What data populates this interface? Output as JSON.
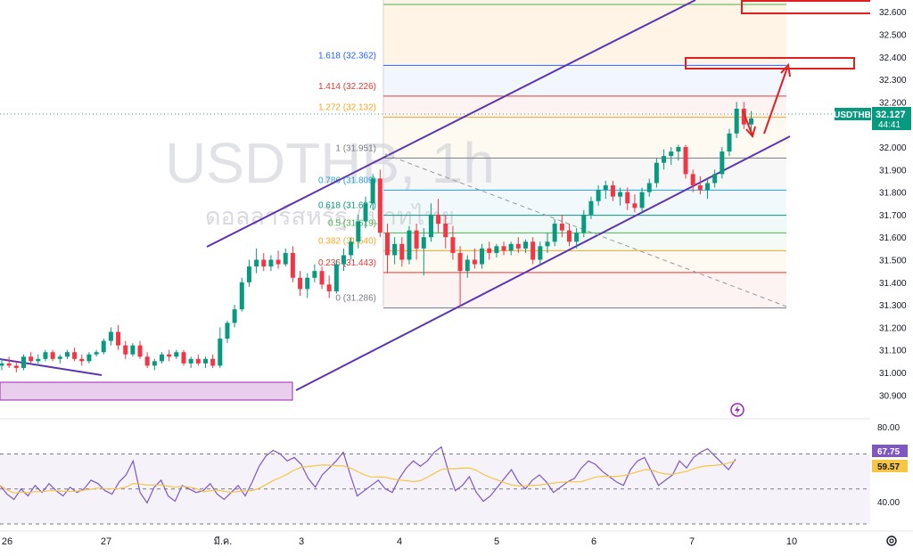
{
  "watermark": {
    "symbol": "USDTHB, 1h",
    "subtitle": "ดอลลาร์สหรัฐ / บาทไทย"
  },
  "price_axis": {
    "ticks": [
      "32.600",
      "32.500",
      "32.400",
      "32.300",
      "32.200",
      "32.100",
      "32.000",
      "31.900",
      "31.800",
      "31.700",
      "31.600",
      "31.500",
      "31.400",
      "31.300",
      "31.200",
      "31.100",
      "31.000",
      "30.900"
    ],
    "ticker_label": "USDTHB",
    "last_price": "32.127",
    "countdown": "44:41"
  },
  "rsi_axis": {
    "ticks": [
      "80.00",
      "40.00"
    ],
    "rsi_value": "67.75",
    "ma_value": "59.57"
  },
  "time_axis": {
    "labels": [
      "26",
      "27",
      "มี.ค.",
      "3",
      "4",
      "5",
      "6",
      "7",
      "10"
    ]
  },
  "fib_levels": [
    {
      "ratio": "1.618",
      "price": "32.362",
      "label": "1.618 (32.362)",
      "color": "#2962ff"
    },
    {
      "ratio": "1.414",
      "price": "32.226",
      "label": "1.414 (32.226)",
      "color": "#e53935"
    },
    {
      "ratio": "1.272",
      "price": "32.132",
      "label": "1.272 (32.132)",
      "color": "#f5a623"
    },
    {
      "ratio": "1",
      "price": "31.951",
      "label": "1 (31.951)",
      "color": "#787b86"
    },
    {
      "ratio": "0.786",
      "price": "31.809",
      "label": "0.786 (31.809)",
      "color": "#26a0da"
    },
    {
      "ratio": "0.618",
      "price": "31.697",
      "label": "0.618 (31.697)",
      "color": "#089981"
    },
    {
      "ratio": "0.5",
      "price": "31.619",
      "label": "0.5 (31.619)",
      "color": "#4caf50"
    },
    {
      "ratio": "0.382",
      "price": "31.540",
      "label": "0.382 (31.540)",
      "color": "#f5a623"
    },
    {
      "ratio": "0.236",
      "price": "31.443",
      "label": "0.236 (31.443)",
      "color": "#e53935"
    },
    {
      "ratio": "0",
      "price": "31.286",
      "label": "0 (31.286)",
      "color": "#787b86"
    }
  ],
  "colors": {
    "up": "#089981",
    "down": "#f23645",
    "channel": "#5e35b1",
    "rsi": "#7e57c2",
    "rsi_ma": "#f5c543",
    "annotation": "#e02020",
    "zone": "#e1bee7"
  },
  "chart_data": {
    "type": "candlestick",
    "symbol": "USDTHB",
    "interval": "1h",
    "ylim": [
      30.85,
      32.63
    ],
    "last": 32.127,
    "ohlc": [
      {
        "t": 0,
        "o": 31.03,
        "h": 31.06,
        "l": 31.01,
        "c": 31.04
      },
      {
        "t": 3,
        "o": 31.04,
        "h": 31.07,
        "l": 31.02,
        "c": 31.03
      },
      {
        "t": 6,
        "o": 31.03,
        "h": 31.05,
        "l": 31.0,
        "c": 31.02
      },
      {
        "t": 9,
        "o": 31.02,
        "h": 31.08,
        "l": 31.01,
        "c": 31.07
      },
      {
        "t": 12,
        "o": 31.07,
        "h": 31.09,
        "l": 31.04,
        "c": 31.05
      },
      {
        "t": 15,
        "o": 31.05,
        "h": 31.08,
        "l": 31.03,
        "c": 31.06
      },
      {
        "t": 18,
        "o": 31.06,
        "h": 31.1,
        "l": 31.05,
        "c": 31.09
      },
      {
        "t": 21,
        "o": 31.09,
        "h": 31.1,
        "l": 31.05,
        "c": 31.06
      },
      {
        "t": 24,
        "o": 31.06,
        "h": 31.08,
        "l": 31.04,
        "c": 31.07
      },
      {
        "t": 27,
        "o": 31.07,
        "h": 31.1,
        "l": 31.06,
        "c": 31.09
      },
      {
        "t": 30,
        "o": 31.09,
        "h": 31.11,
        "l": 31.05,
        "c": 31.06
      },
      {
        "t": 33,
        "o": 31.06,
        "h": 31.08,
        "l": 31.03,
        "c": 31.05
      },
      {
        "t": 36,
        "o": 31.05,
        "h": 31.09,
        "l": 31.04,
        "c": 31.08
      },
      {
        "t": 39,
        "o": 31.08,
        "h": 31.1,
        "l": 31.07,
        "c": 31.09
      },
      {
        "t": 42,
        "o": 31.09,
        "h": 31.15,
        "l": 31.08,
        "c": 31.14
      },
      {
        "t": 45,
        "o": 31.14,
        "h": 31.2,
        "l": 31.12,
        "c": 31.18
      },
      {
        "t": 48,
        "o": 31.18,
        "h": 31.21,
        "l": 31.1,
        "c": 31.12
      },
      {
        "t": 51,
        "o": 31.12,
        "h": 31.14,
        "l": 31.06,
        "c": 31.08
      },
      {
        "t": 54,
        "o": 31.08,
        "h": 31.13,
        "l": 31.07,
        "c": 31.12
      },
      {
        "t": 57,
        "o": 31.12,
        "h": 31.14,
        "l": 31.06,
        "c": 31.07
      },
      {
        "t": 60,
        "o": 31.07,
        "h": 31.09,
        "l": 31.02,
        "c": 31.03
      },
      {
        "t": 63,
        "o": 31.03,
        "h": 31.06,
        "l": 31.01,
        "c": 31.05
      },
      {
        "t": 66,
        "o": 31.05,
        "h": 31.09,
        "l": 31.04,
        "c": 31.08
      },
      {
        "t": 69,
        "o": 31.08,
        "h": 31.1,
        "l": 31.05,
        "c": 31.07
      },
      {
        "t": 72,
        "o": 31.07,
        "h": 31.1,
        "l": 31.06,
        "c": 31.09
      },
      {
        "t": 75,
        "o": 31.09,
        "h": 31.1,
        "l": 31.03,
        "c": 31.04
      },
      {
        "t": 78,
        "o": 31.04,
        "h": 31.07,
        "l": 31.02,
        "c": 31.06
      },
      {
        "t": 81,
        "o": 31.06,
        "h": 31.08,
        "l": 31.03,
        "c": 31.04
      },
      {
        "t": 84,
        "o": 31.04,
        "h": 31.07,
        "l": 31.02,
        "c": 31.06
      },
      {
        "t": 87,
        "o": 31.06,
        "h": 31.08,
        "l": 31.02,
        "c": 31.03
      },
      {
        "t": 90,
        "o": 31.03,
        "h": 31.2,
        "l": 31.02,
        "c": 31.15
      },
      {
        "t": 93,
        "o": 31.15,
        "h": 31.23,
        "l": 31.13,
        "c": 31.22
      },
      {
        "t": 96,
        "o": 31.22,
        "h": 31.3,
        "l": 31.2,
        "c": 31.28
      },
      {
        "t": 99,
        "o": 31.28,
        "h": 31.42,
        "l": 31.27,
        "c": 31.4
      },
      {
        "t": 102,
        "o": 31.4,
        "h": 31.5,
        "l": 31.38,
        "c": 31.47
      },
      {
        "t": 105,
        "o": 31.47,
        "h": 31.55,
        "l": 31.44,
        "c": 31.5
      },
      {
        "t": 108,
        "o": 31.5,
        "h": 31.53,
        "l": 31.45,
        "c": 31.47
      },
      {
        "t": 111,
        "o": 31.47,
        "h": 31.52,
        "l": 31.45,
        "c": 31.5
      },
      {
        "t": 114,
        "o": 31.5,
        "h": 31.54,
        "l": 31.46,
        "c": 31.48
      },
      {
        "t": 117,
        "o": 31.48,
        "h": 31.55,
        "l": 31.47,
        "c": 31.53
      },
      {
        "t": 120,
        "o": 31.53,
        "h": 31.56,
        "l": 31.4,
        "c": 31.42
      },
      {
        "t": 123,
        "o": 31.42,
        "h": 31.45,
        "l": 31.34,
        "c": 31.37
      },
      {
        "t": 126,
        "o": 31.37,
        "h": 31.44,
        "l": 31.33,
        "c": 31.42
      },
      {
        "t": 129,
        "o": 31.42,
        "h": 31.48,
        "l": 31.4,
        "c": 31.45
      },
      {
        "t": 132,
        "o": 31.45,
        "h": 31.47,
        "l": 31.37,
        "c": 31.39
      },
      {
        "t": 135,
        "o": 31.39,
        "h": 31.43,
        "l": 31.33,
        "c": 31.36
      },
      {
        "t": 138,
        "o": 31.36,
        "h": 31.5,
        "l": 31.35,
        "c": 31.48
      },
      {
        "t": 141,
        "o": 31.48,
        "h": 31.55,
        "l": 31.45,
        "c": 31.52
      },
      {
        "t": 144,
        "o": 31.52,
        "h": 31.6,
        "l": 31.5,
        "c": 31.58
      },
      {
        "t": 147,
        "o": 31.58,
        "h": 31.7,
        "l": 31.55,
        "c": 31.67
      },
      {
        "t": 150,
        "o": 31.67,
        "h": 31.78,
        "l": 31.64,
        "c": 31.75
      },
      {
        "t": 153,
        "o": 31.75,
        "h": 31.88,
        "l": 31.72,
        "c": 31.86
      },
      {
        "t": 156,
        "o": 31.86,
        "h": 31.9,
        "l": 31.6,
        "c": 31.62
      },
      {
        "t": 159,
        "o": 31.62,
        "h": 31.66,
        "l": 31.44,
        "c": 31.52
      },
      {
        "t": 162,
        "o": 31.52,
        "h": 31.6,
        "l": 31.48,
        "c": 31.57
      },
      {
        "t": 165,
        "o": 31.57,
        "h": 31.6,
        "l": 31.47,
        "c": 31.5
      },
      {
        "t": 168,
        "o": 31.5,
        "h": 31.65,
        "l": 31.48,
        "c": 31.63
      },
      {
        "t": 171,
        "o": 31.63,
        "h": 31.66,
        "l": 31.5,
        "c": 31.55
      },
      {
        "t": 174,
        "o": 31.55,
        "h": 31.64,
        "l": 31.43,
        "c": 31.6
      },
      {
        "t": 177,
        "o": 31.6,
        "h": 31.75,
        "l": 31.58,
        "c": 31.7
      },
      {
        "t": 180,
        "o": 31.7,
        "h": 31.77,
        "l": 31.62,
        "c": 31.66
      },
      {
        "t": 183,
        "o": 31.66,
        "h": 31.7,
        "l": 31.55,
        "c": 31.6
      },
      {
        "t": 186,
        "o": 31.6,
        "h": 31.65,
        "l": 31.5,
        "c": 31.53
      },
      {
        "t": 189,
        "o": 31.53,
        "h": 31.56,
        "l": 31.29,
        "c": 31.45
      },
      {
        "t": 192,
        "o": 31.45,
        "h": 31.52,
        "l": 31.42,
        "c": 31.5
      },
      {
        "t": 195,
        "o": 31.5,
        "h": 31.55,
        "l": 31.46,
        "c": 31.48
      },
      {
        "t": 198,
        "o": 31.48,
        "h": 31.57,
        "l": 31.46,
        "c": 31.55
      },
      {
        "t": 201,
        "o": 31.55,
        "h": 31.58,
        "l": 31.5,
        "c": 31.53
      },
      {
        "t": 204,
        "o": 31.53,
        "h": 31.57,
        "l": 31.51,
        "c": 31.56
      },
      {
        "t": 207,
        "o": 31.56,
        "h": 31.58,
        "l": 31.52,
        "c": 31.54
      },
      {
        "t": 210,
        "o": 31.54,
        "h": 31.58,
        "l": 31.52,
        "c": 31.57
      },
      {
        "t": 213,
        "o": 31.57,
        "h": 31.6,
        "l": 31.53,
        "c": 31.55
      },
      {
        "t": 216,
        "o": 31.55,
        "h": 31.59,
        "l": 31.53,
        "c": 31.58
      },
      {
        "t": 219,
        "o": 31.58,
        "h": 31.6,
        "l": 31.48,
        "c": 31.5
      },
      {
        "t": 222,
        "o": 31.5,
        "h": 31.58,
        "l": 31.48,
        "c": 31.56
      },
      {
        "t": 225,
        "o": 31.56,
        "h": 31.62,
        "l": 31.53,
        "c": 31.58
      },
      {
        "t": 228,
        "o": 31.58,
        "h": 31.68,
        "l": 31.56,
        "c": 31.66
      },
      {
        "t": 231,
        "o": 31.66,
        "h": 31.7,
        "l": 31.6,
        "c": 31.63
      },
      {
        "t": 234,
        "o": 31.63,
        "h": 31.66,
        "l": 31.56,
        "c": 31.58
      },
      {
        "t": 237,
        "o": 31.58,
        "h": 31.64,
        "l": 31.55,
        "c": 31.62
      },
      {
        "t": 240,
        "o": 31.62,
        "h": 31.72,
        "l": 31.6,
        "c": 31.7
      },
      {
        "t": 243,
        "o": 31.7,
        "h": 31.78,
        "l": 31.68,
        "c": 31.76
      },
      {
        "t": 246,
        "o": 31.76,
        "h": 31.83,
        "l": 31.74,
        "c": 31.81
      },
      {
        "t": 249,
        "o": 31.81,
        "h": 31.85,
        "l": 31.77,
        "c": 31.83
      },
      {
        "t": 252,
        "o": 31.83,
        "h": 31.85,
        "l": 31.76,
        "c": 31.78
      },
      {
        "t": 255,
        "o": 31.78,
        "h": 31.82,
        "l": 31.74,
        "c": 31.8
      },
      {
        "t": 258,
        "o": 31.8,
        "h": 31.82,
        "l": 31.72,
        "c": 31.75
      },
      {
        "t": 261,
        "o": 31.75,
        "h": 31.79,
        "l": 31.71,
        "c": 31.73
      },
      {
        "t": 264,
        "o": 31.73,
        "h": 31.82,
        "l": 31.71,
        "c": 31.8
      },
      {
        "t": 267,
        "o": 31.8,
        "h": 31.86,
        "l": 31.78,
        "c": 31.84
      },
      {
        "t": 270,
        "o": 31.84,
        "h": 31.95,
        "l": 31.82,
        "c": 31.93
      },
      {
        "t": 273,
        "o": 31.93,
        "h": 31.99,
        "l": 31.9,
        "c": 31.96
      },
      {
        "t": 276,
        "o": 31.96,
        "h": 32.0,
        "l": 31.92,
        "c": 31.98
      },
      {
        "t": 279,
        "o": 31.98,
        "h": 32.01,
        "l": 31.94,
        "c": 32.0
      },
      {
        "t": 282,
        "o": 32.0,
        "h": 32.01,
        "l": 31.86,
        "c": 31.88
      },
      {
        "t": 285,
        "o": 31.88,
        "h": 31.9,
        "l": 31.8,
        "c": 31.83
      },
      {
        "t": 288,
        "o": 31.83,
        "h": 31.87,
        "l": 31.79,
        "c": 31.81
      },
      {
        "t": 291,
        "o": 31.81,
        "h": 31.86,
        "l": 31.77,
        "c": 31.84
      },
      {
        "t": 294,
        "o": 31.84,
        "h": 31.9,
        "l": 31.82,
        "c": 31.88
      },
      {
        "t": 297,
        "o": 31.88,
        "h": 32.0,
        "l": 31.86,
        "c": 31.98
      },
      {
        "t": 300,
        "o": 31.98,
        "h": 32.08,
        "l": 31.96,
        "c": 32.06
      },
      {
        "t": 303,
        "o": 32.06,
        "h": 32.2,
        "l": 32.04,
        "c": 32.17
      },
      {
        "t": 306,
        "o": 32.17,
        "h": 32.2,
        "l": 32.08,
        "c": 32.1
      },
      {
        "t": 309,
        "o": 32.1,
        "h": 32.16,
        "l": 32.07,
        "c": 32.127
      }
    ],
    "rsi": {
      "ylim": [
        30,
        85
      ],
      "levels": [
        70,
        50,
        30
      ],
      "values": [
        52,
        47,
        44,
        50,
        46,
        52,
        48,
        53,
        49,
        46,
        51,
        48,
        50,
        55,
        53,
        49,
        47,
        54,
        58,
        66,
        48,
        42,
        51,
        55,
        46,
        43,
        52,
        50,
        48,
        49,
        53,
        47,
        44,
        48,
        52,
        46,
        54,
        63,
        69,
        72,
        70,
        66,
        68,
        64,
        56,
        51,
        58,
        62,
        66,
        71,
        58,
        46,
        49,
        52,
        55,
        50,
        48,
        56,
        62,
        66,
        63,
        66,
        71,
        74,
        60,
        49,
        52,
        57,
        48,
        43,
        46,
        51,
        56,
        61,
        54,
        50,
        55,
        58,
        54,
        48,
        51,
        54,
        56,
        62,
        66,
        64,
        60,
        57,
        54,
        52,
        61,
        66,
        68,
        60,
        52,
        55,
        58,
        66,
        62,
        68,
        71,
        73,
        69,
        65,
        61,
        67
      ]
    }
  }
}
